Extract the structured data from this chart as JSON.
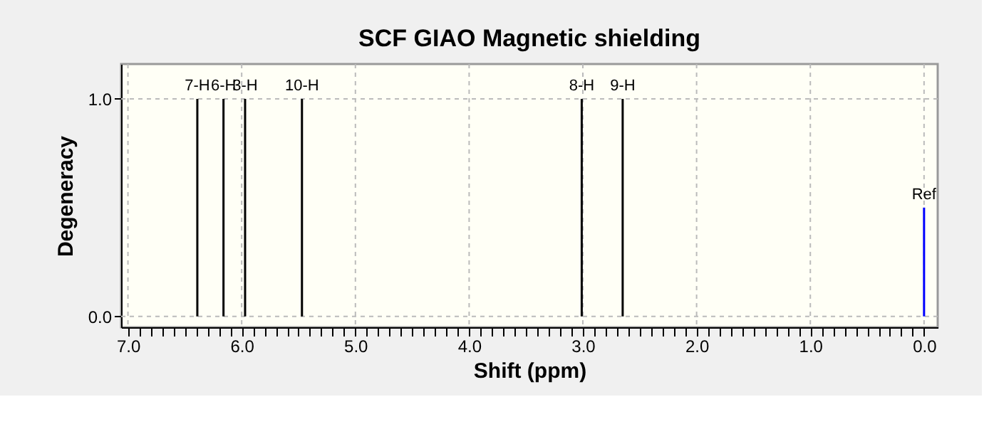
{
  "chart_data": {
    "type": "bar",
    "title": "SCF GIAO Magnetic shielding",
    "xlabel": "Shift (ppm)",
    "ylabel": "Degeneracy",
    "x": [
      6.39,
      6.16,
      5.97,
      5.47,
      3.01,
      2.65,
      0.0
    ],
    "values": [
      1,
      1,
      1,
      1,
      1,
      1,
      0.5
    ],
    "colors": [
      "#000000",
      "#000000",
      "#000000",
      "#000000",
      "#000000",
      "#000000",
      "#0000ff"
    ],
    "annotations": [
      {
        "text": "7-H",
        "x": 6.39,
        "y": 1
      },
      {
        "text": "6-H",
        "x": 6.16,
        "y": 1
      },
      {
        "text": "3-H",
        "x": 5.97,
        "y": 1
      },
      {
        "text": "10-H",
        "x": 5.47,
        "y": 1
      },
      {
        "text": "8-H",
        "x": 3.01,
        "y": 1
      },
      {
        "text": "9-H",
        "x": 2.65,
        "y": 1
      },
      {
        "text": "Ref",
        "x": 0.0,
        "y": 0.5
      }
    ],
    "xlim": [
      7.06,
      -0.12
    ],
    "xticks": [
      {
        "value": 7.0,
        "label": "7.0"
      },
      {
        "value": 6.0,
        "label": "6.0"
      },
      {
        "value": 5.0,
        "label": "5.0"
      },
      {
        "value": 4.0,
        "label": "4.0"
      },
      {
        "value": 3.0,
        "label": "3.0"
      },
      {
        "value": 2.0,
        "label": "2.0"
      },
      {
        "value": 1.0,
        "label": "1.0"
      },
      {
        "value": 0.0,
        "label": "0.0"
      },
      {
        "value": 6.9,
        "label": null
      },
      {
        "value": 6.8,
        "label": null
      },
      {
        "value": 6.7,
        "label": null
      },
      {
        "value": 6.6,
        "label": null
      },
      {
        "value": 6.5,
        "label": null
      },
      {
        "value": 6.4,
        "label": null
      },
      {
        "value": 6.3,
        "label": null
      },
      {
        "value": 6.2,
        "label": null
      },
      {
        "value": 6.1,
        "label": null
      },
      {
        "value": 5.9,
        "label": null
      },
      {
        "value": 5.8,
        "label": null
      },
      {
        "value": 5.7,
        "label": null
      },
      {
        "value": 5.6,
        "label": null
      },
      {
        "value": 5.5,
        "label": null
      },
      {
        "value": 5.4,
        "label": null
      },
      {
        "value": 5.3,
        "label": null
      },
      {
        "value": 5.2,
        "label": null
      },
      {
        "value": 5.1,
        "label": null
      },
      {
        "value": 4.9,
        "label": null
      },
      {
        "value": 4.8,
        "label": null
      },
      {
        "value": 4.7,
        "label": null
      },
      {
        "value": 4.6,
        "label": null
      },
      {
        "value": 4.5,
        "label": null
      },
      {
        "value": 4.4,
        "label": null
      },
      {
        "value": 4.3,
        "label": null
      },
      {
        "value": 4.2,
        "label": null
      },
      {
        "value": 4.1,
        "label": null
      },
      {
        "value": 3.9,
        "label": null
      },
      {
        "value": 3.8,
        "label": null
      },
      {
        "value": 3.7,
        "label": null
      },
      {
        "value": 3.6,
        "label": null
      },
      {
        "value": 3.5,
        "label": null
      },
      {
        "value": 3.4,
        "label": null
      },
      {
        "value": 3.3,
        "label": null
      },
      {
        "value": 3.2,
        "label": null
      },
      {
        "value": 3.1,
        "label": null
      },
      {
        "value": 2.9,
        "label": null
      },
      {
        "value": 2.8,
        "label": null
      },
      {
        "value": 2.7,
        "label": null
      },
      {
        "value": 2.6,
        "label": null
      },
      {
        "value": 2.5,
        "label": null
      },
      {
        "value": 2.4,
        "label": null
      },
      {
        "value": 2.3,
        "label": null
      },
      {
        "value": 2.2,
        "label": null
      },
      {
        "value": 2.1,
        "label": null
      },
      {
        "value": 1.9,
        "label": null
      },
      {
        "value": 1.8,
        "label": null
      },
      {
        "value": 1.7,
        "label": null
      },
      {
        "value": 1.6,
        "label": null
      },
      {
        "value": 1.5,
        "label": null
      },
      {
        "value": 1.4,
        "label": null
      },
      {
        "value": 1.3,
        "label": null
      },
      {
        "value": 1.2,
        "label": null
      },
      {
        "value": 1.1,
        "label": null
      },
      {
        "value": 0.9,
        "label": null
      },
      {
        "value": 0.8,
        "label": null
      },
      {
        "value": 0.7,
        "label": null
      },
      {
        "value": 0.6,
        "label": null
      },
      {
        "value": 0.5,
        "label": null
      },
      {
        "value": 0.4,
        "label": null
      },
      {
        "value": 0.3,
        "label": null
      },
      {
        "value": 0.2,
        "label": null
      },
      {
        "value": 0.1,
        "label": null
      }
    ],
    "ylim": [
      -0.05,
      1.16
    ],
    "yticks": [
      {
        "value": 0.0,
        "label": "0.0"
      },
      {
        "value": 1.0,
        "label": "1.0"
      }
    ],
    "grid": true
  }
}
